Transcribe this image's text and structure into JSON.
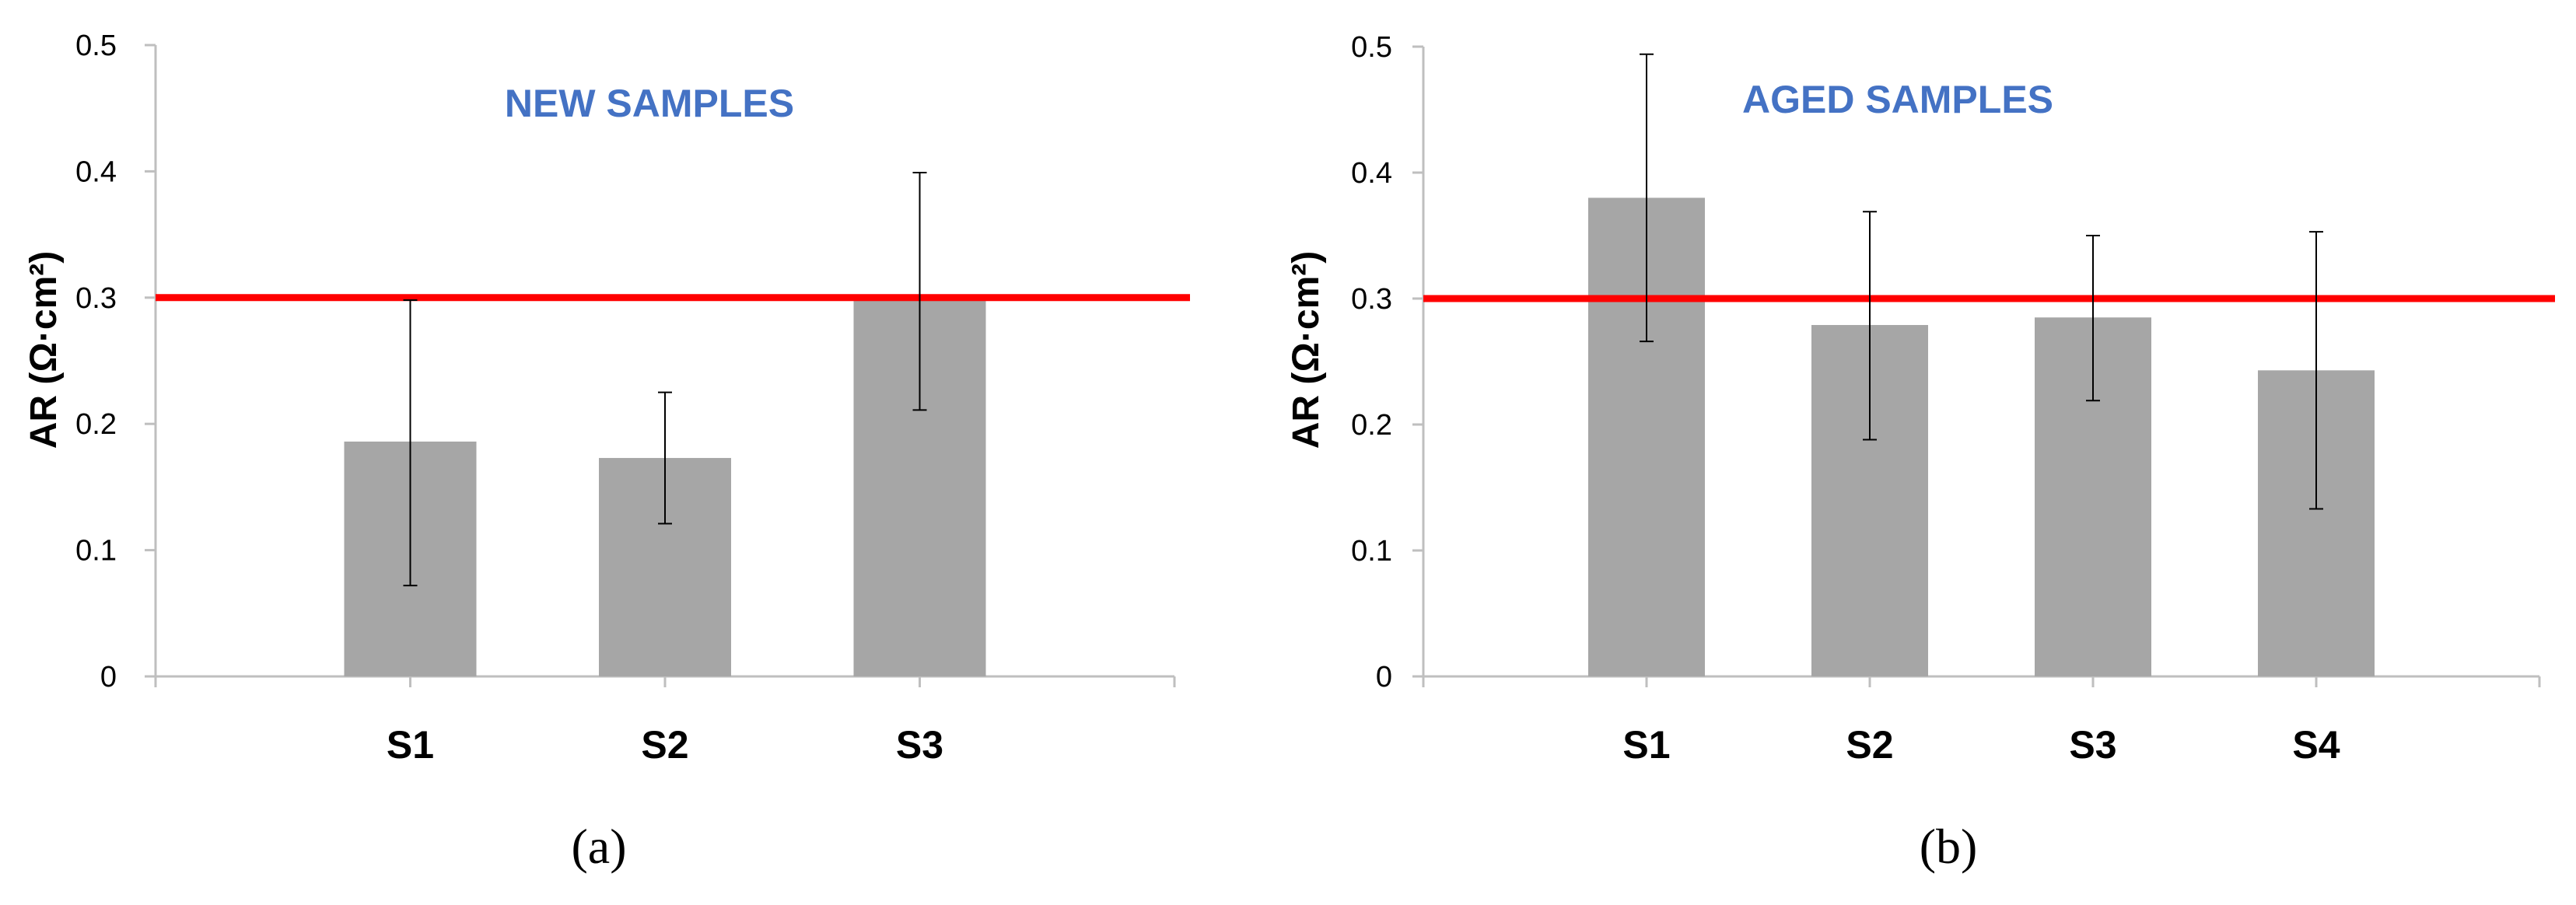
{
  "chart_data": [
    {
      "type": "bar",
      "panel_caption": "(a)",
      "title": "NEW SAMPLES",
      "ylabel": "AR (Ω·cm²)",
      "xlabel": "",
      "categories": [
        "S1",
        "S2",
        "S3"
      ],
      "values": [
        0.186,
        0.173,
        0.302
      ],
      "error_low": [
        0.072,
        0.121,
        0.211
      ],
      "error_high": [
        0.298,
        0.225,
        0.399
      ],
      "ylim": [
        0,
        0.5
      ],
      "yticks": [
        "0",
        "0.1",
        "0.2",
        "0.3",
        "0.4",
        "0.5"
      ],
      "reference_line": 0.3,
      "grid": false,
      "colors": {
        "bar": "#a6a6a6",
        "reference": "#ff0000",
        "title": "#4472c4",
        "axis": "#bfbfbf"
      }
    },
    {
      "type": "bar",
      "panel_caption": "(b)",
      "title": "AGED SAMPLES",
      "ylabel": "AR (Ω·cm²)",
      "xlabel": "",
      "categories": [
        "S1",
        "S2",
        "S3",
        "S4"
      ],
      "values": [
        0.38,
        0.279,
        0.285,
        0.243
      ],
      "error_low": [
        0.266,
        0.188,
        0.219,
        0.133
      ],
      "error_high": [
        0.494,
        0.369,
        0.35,
        0.353
      ],
      "ylim": [
        0,
        0.5
      ],
      "yticks": [
        "0",
        "0.1",
        "0.2",
        "0.3",
        "0.4",
        "0.5"
      ],
      "reference_line": 0.3,
      "grid": false,
      "colors": {
        "bar": "#a6a6a6",
        "reference": "#ff0000",
        "title": "#4472c4",
        "axis": "#bfbfbf"
      }
    }
  ]
}
